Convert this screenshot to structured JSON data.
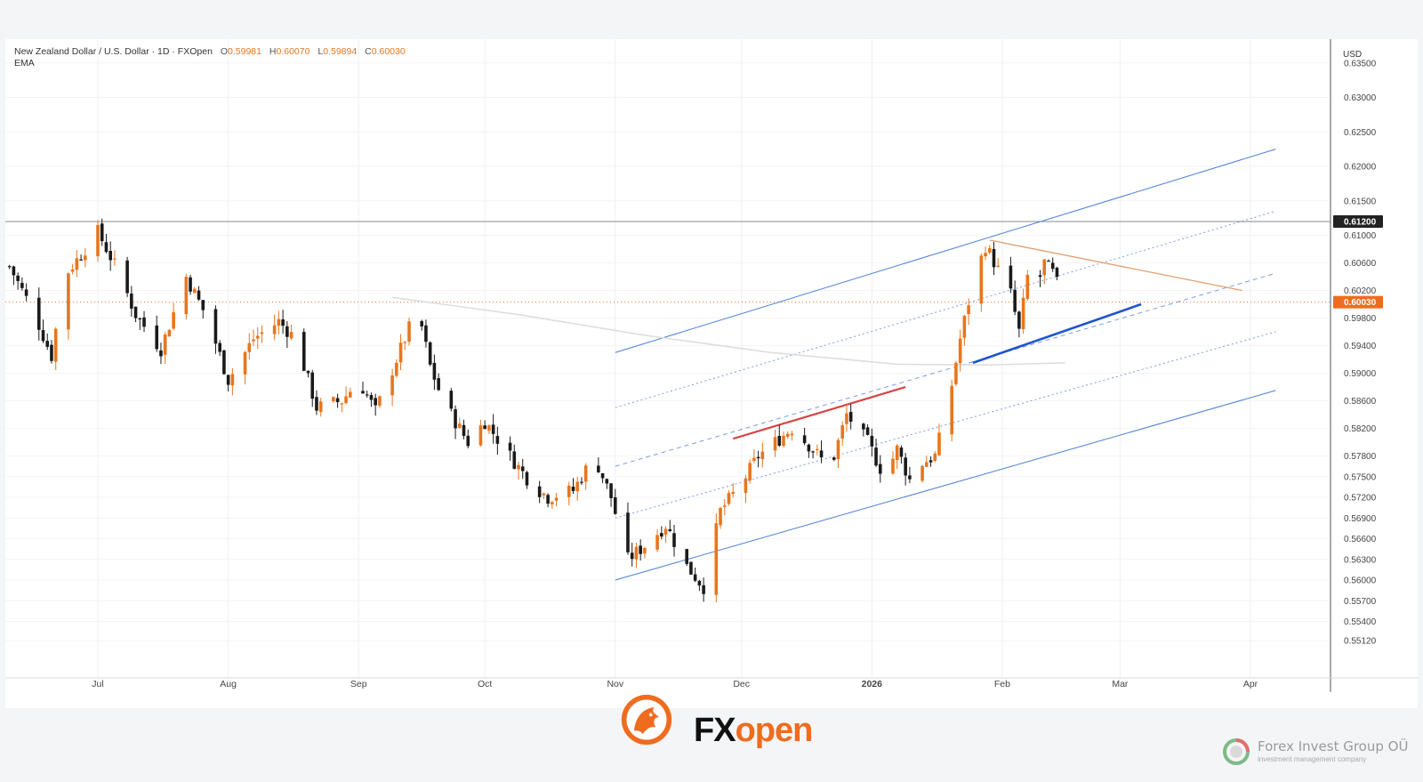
{
  "header": {
    "instrument": "New Zealand Dollar / U.S. Dollar · 1D · FXOpen",
    "ohlc": [
      {
        "label": "O",
        "value": "0.59981"
      },
      {
        "label": "H",
        "value": "0.60070"
      },
      {
        "label": "L",
        "value": "0.59894"
      },
      {
        "label": "C",
        "value": "0.60030"
      }
    ],
    "indicator": "EMA"
  },
  "colors": {
    "bull": "#e8761c",
    "bear": "#1a1a1a",
    "channel": "#4a7fd4",
    "resistance": "#d94040",
    "support": "#1f55cc",
    "downtrend": "#e0a070",
    "price_tag": "#ef6c1e",
    "level_tag": "#222222",
    "ema": "#dcdcdc"
  },
  "footer": {
    "brand_a": "FX",
    "brand_b": "open",
    "company": "Forex Invest Group OÜ",
    "company_sub": "investment management company"
  },
  "chart_data": {
    "type": "candlestick",
    "currency": "USD",
    "y_ticks": [
      "0.63500",
      "0.63000",
      "0.62500",
      "0.62000",
      "0.61500",
      "0.61000",
      "0.60600",
      "0.60200",
      "0.59800",
      "0.59400",
      "0.59000",
      "0.58600",
      "0.58200",
      "0.57800",
      "0.57500",
      "0.57200",
      "0.56900",
      "0.56600",
      "0.56300",
      "0.56000",
      "0.55700",
      "0.55400",
      "0.55120"
    ],
    "x_ticks": [
      {
        "label": "Jul",
        "day": 0
      },
      {
        "label": "Aug",
        "day": 31
      },
      {
        "label": "Sep",
        "day": 62
      },
      {
        "label": "Oct",
        "day": 92
      },
      {
        "label": "Nov",
        "day": 123
      },
      {
        "label": "Dec",
        "day": 153
      },
      {
        "label": "2026",
        "day": 184
      },
      {
        "label": "Feb",
        "day": 215
      },
      {
        "label": "Mar",
        "day": 243
      },
      {
        "label": "Apr",
        "day": 274
      }
    ],
    "horizontal_level": {
      "value": 0.612,
      "label": "0.61200"
    },
    "last_price": {
      "value": 0.6003,
      "label": "0.60030"
    },
    "anchors": [
      [
        -21,
        0.6055
      ],
      [
        -15,
        0.5985
      ],
      [
        -11,
        0.5925
      ],
      [
        -8,
        0.604
      ],
      [
        0,
        0.6105
      ],
      [
        5,
        0.6045
      ],
      [
        9,
        0.5985
      ],
      [
        15,
        0.5935
      ],
      [
        21,
        0.604
      ],
      [
        26,
        0.598
      ],
      [
        31,
        0.589
      ],
      [
        37,
        0.595
      ],
      [
        43,
        0.5975
      ],
      [
        47,
        0.595
      ],
      [
        52,
        0.585
      ],
      [
        58,
        0.586
      ],
      [
        62,
        0.589
      ],
      [
        66,
        0.5845
      ],
      [
        71,
        0.592
      ],
      [
        76,
        0.5995
      ],
      [
        79,
        0.591
      ],
      [
        82,
        0.586
      ],
      [
        88,
        0.58
      ],
      [
        92,
        0.583
      ],
      [
        98,
        0.578
      ],
      [
        103,
        0.574
      ],
      [
        107,
        0.572
      ],
      [
        113,
        0.573
      ],
      [
        118,
        0.578
      ],
      [
        122,
        0.572
      ],
      [
        126,
        0.563
      ],
      [
        130,
        0.565
      ],
      [
        135,
        0.568
      ],
      [
        140,
        0.562
      ],
      [
        144,
        0.559
      ],
      [
        148,
        0.57
      ],
      [
        153,
        0.574
      ],
      [
        157,
        0.578
      ],
      [
        161,
        0.58
      ],
      [
        165,
        0.582
      ],
      [
        170,
        0.579
      ],
      [
        174,
        0.576
      ],
      [
        178,
        0.584
      ],
      [
        183,
        0.58
      ],
      [
        187,
        0.575
      ],
      [
        190,
        0.579
      ],
      [
        193,
        0.5745
      ],
      [
        196,
        0.577
      ],
      [
        199,
        0.578
      ],
      [
        202,
        0.585
      ],
      [
        205,
        0.595
      ],
      [
        208,
        0.603
      ],
      [
        211,
        0.6085
      ],
      [
        214,
        0.605
      ],
      [
        217,
        0.6015
      ],
      [
        219,
        0.596
      ],
      [
        221,
        0.604
      ],
      [
        223,
        0.602
      ],
      [
        225,
        0.606
      ],
      [
        227,
        0.6045
      ],
      [
        229,
        0.6015
      ],
      [
        230,
        0.6003
      ]
    ],
    "drawings": {
      "channel_upper": [
        [
          123,
          0.593
        ],
        [
          280,
          0.6225
        ]
      ],
      "channel_lower": [
        [
          123,
          0.56
        ],
        [
          280,
          0.5875
        ]
      ],
      "channel_inner_top": [
        [
          123,
          0.585
        ],
        [
          280,
          0.6135
        ]
      ],
      "channel_inner_mid": [
        [
          123,
          0.5765
        ],
        [
          280,
          0.6045
        ]
      ],
      "channel_inner_bot": [
        [
          123,
          0.569
        ],
        [
          280,
          0.596
        ]
      ],
      "resistance_segment": [
        [
          151,
          0.5805
        ],
        [
          192,
          0.588
        ]
      ],
      "support_segment": [
        [
          208,
          0.5915
        ],
        [
          248,
          0.6
        ]
      ],
      "downtrend_line": [
        [
          212,
          0.6093
        ],
        [
          272,
          0.602
        ]
      ],
      "ema": [
        [
          70,
          0.601
        ],
        [
          100,
          0.5985
        ],
        [
          130,
          0.5955
        ],
        [
          160,
          0.593
        ],
        [
          190,
          0.5913
        ],
        [
          212,
          0.5912
        ],
        [
          230,
          0.5915
        ]
      ]
    }
  }
}
